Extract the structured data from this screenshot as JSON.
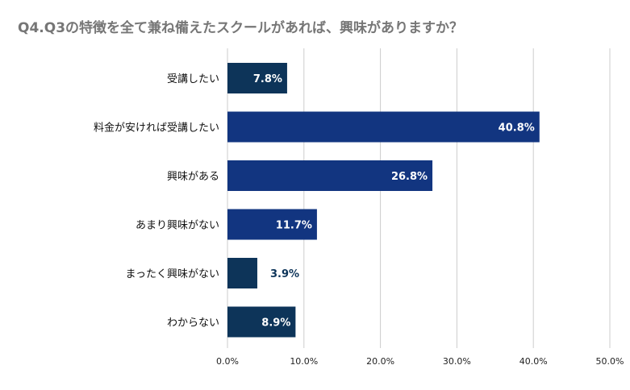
{
  "chart_data": {
    "type": "bar",
    "orientation": "horizontal",
    "title": "Q4.Q3の特徴を全て兼ね備えたスクールがあれば、興味がありますか？",
    "xlabel": "",
    "ylabel": "",
    "categories": [
      "受講したい",
      "料金が安ければ受講したい",
      "興味がある",
      "あまり興味がない",
      "まったく興味がない",
      "わからない"
    ],
    "values": [
      7.8,
      40.8,
      26.8,
      11.7,
      3.9,
      8.9
    ],
    "data_labels": [
      "7.8%",
      "40.8%",
      "26.8%",
      "11.7%",
      "3.9%",
      "8.9%"
    ],
    "bar_colors": [
      "#0d3459",
      "#123580",
      "#123580",
      "#123580",
      "#0d3459",
      "#0d3459"
    ],
    "xlim": [
      0,
      50
    ],
    "x_ticks": [
      0,
      10,
      20,
      30,
      40,
      50
    ],
    "x_tick_labels": [
      "0.0%",
      "10.0%",
      "20.0%",
      "30.0%",
      "40.0%",
      "50.0%"
    ],
    "grid": true,
    "legend": "none",
    "label_color_inside": "#ffffff",
    "label_color_outside": "#0d3459",
    "grid_color": "#cccccc"
  }
}
